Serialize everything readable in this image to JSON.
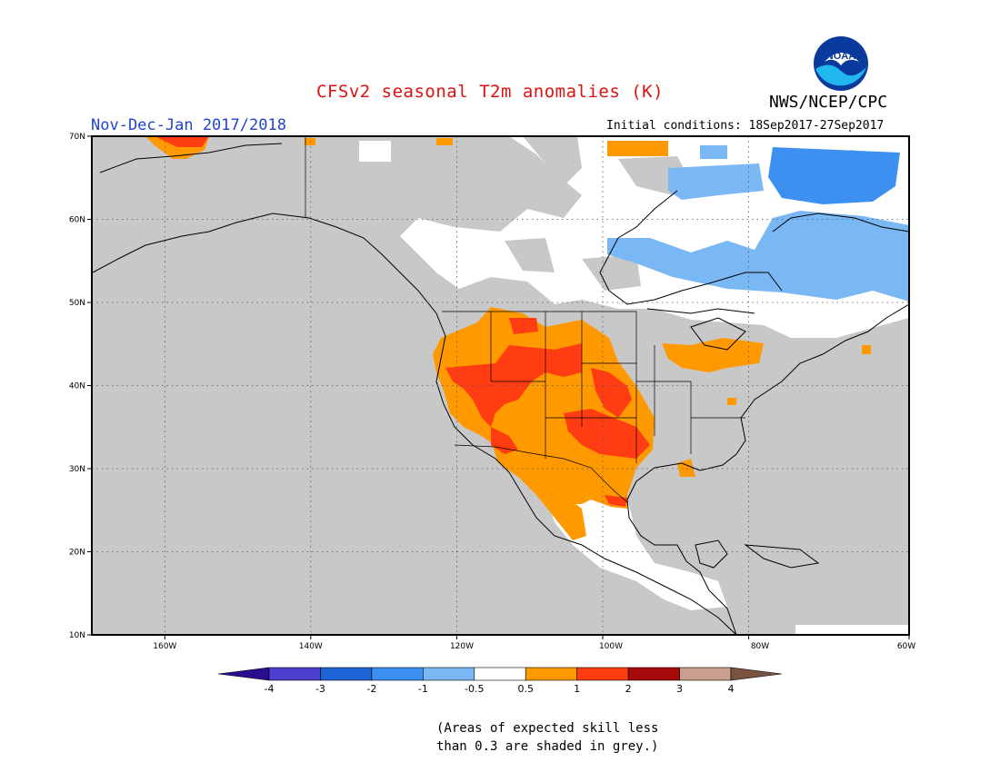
{
  "title": "CFSv2 seasonal T2m anomalies (K)",
  "agency": "NWS/NCEP/CPC",
  "logo_text": "NOAA",
  "period": "Nov-Dec-Jan 2017/2018",
  "initial_conditions": "Initial conditions: 18Sep2017-27Sep2017",
  "map": {
    "lon_range": [
      -172,
      -60
    ],
    "lat_range": [
      10,
      70
    ],
    "lat_ticks": [
      "70N",
      "60N",
      "50N",
      "40N",
      "30N",
      "20N",
      "10N"
    ],
    "lon_ticks": [
      "160W",
      "140W",
      "120W",
      "100W",
      "80W",
      "60W"
    ],
    "grid": "dotted 10 degree",
    "background": "#c8c8c8"
  },
  "colorbar": {
    "labels": [
      "-4",
      "-3",
      "-2",
      "-1",
      "-0.5",
      "0.5",
      "1",
      "2",
      "3",
      "4"
    ],
    "colors": [
      "#2b0d8f",
      "#4f3fd0",
      "#1e64d6",
      "#3d8ff0",
      "#7ab8f5",
      "#ffffff",
      "#ff9900",
      "#ff3c12",
      "#a60a0a",
      "#c9a08f",
      "#7a5240"
    ]
  },
  "note_line1": "(Areas of expected skill less",
  "note_line2": "than 0.3 are shaded in grey.)"
}
